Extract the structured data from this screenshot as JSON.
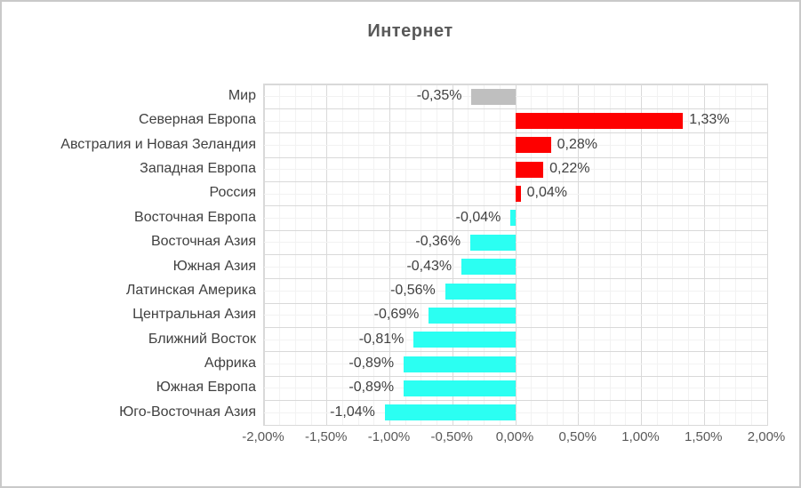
{
  "window": {
    "background": "#ffffff",
    "border_color": "#c9c9c9"
  },
  "chart_data": {
    "type": "bar",
    "orientation": "horizontal",
    "title": "Интернет",
    "xlabel": "",
    "ylabel": "",
    "categories": [
      "Мир",
      "Северная Европа",
      "Австралия и Новая Зеландия",
      "Западная Европа",
      "Россия",
      "Восточная Европа",
      "Восточная Азия",
      "Южная Азия",
      "Латинская Америка",
      "Центральная Азия",
      "Ближний Восток",
      "Африка",
      "Южная Европа",
      "Юго-Восточная Азия"
    ],
    "values": [
      -0.35,
      1.33,
      0.28,
      0.22,
      0.04,
      -0.04,
      -0.36,
      -0.43,
      -0.56,
      -0.69,
      -0.81,
      -0.89,
      -0.89,
      -1.04
    ],
    "value_labels": [
      "-0,35%",
      "1,33%",
      "0,28%",
      "0,22%",
      "0,04%",
      "-0,04%",
      "-0,36%",
      "-0,43%",
      "-0,56%",
      "-0,69%",
      "-0,81%",
      "-0,89%",
      "-0,89%",
      "-1,04%"
    ],
    "bar_colors": [
      "#bfbfbf",
      "#fe0000",
      "#fe0000",
      "#fe0000",
      "#fe0000",
      "#2bfff2",
      "#2bfff2",
      "#2bfff2",
      "#2bfff2",
      "#2bfff2",
      "#2bfff2",
      "#2bfff2",
      "#2bfff2",
      "#2bfff2"
    ],
    "xlim": [
      -2,
      2
    ],
    "x_tick_values": [
      -2,
      -1.5,
      -1,
      -0.5,
      0,
      0.5,
      1,
      1.5,
      2
    ],
    "x_tick_labels": [
      "-2,00%",
      "-1,50%",
      "-1,00%",
      "-0,50%",
      "0,00%",
      "0,50%",
      "1,00%",
      "1,50%",
      "2,00%"
    ],
    "minor_unit": 0.125,
    "grid": {
      "on": true,
      "major_color": "#d9d9d9",
      "minor_color": "#f2f2f2"
    },
    "legend": "none",
    "colors": {
      "positive": "#fe0000",
      "negative": "#2bfff2",
      "world": "#bfbfbf",
      "title_text": "#595959",
      "category_text": "#404040",
      "value_text": "#404040",
      "axis_text": "#595959"
    }
  }
}
